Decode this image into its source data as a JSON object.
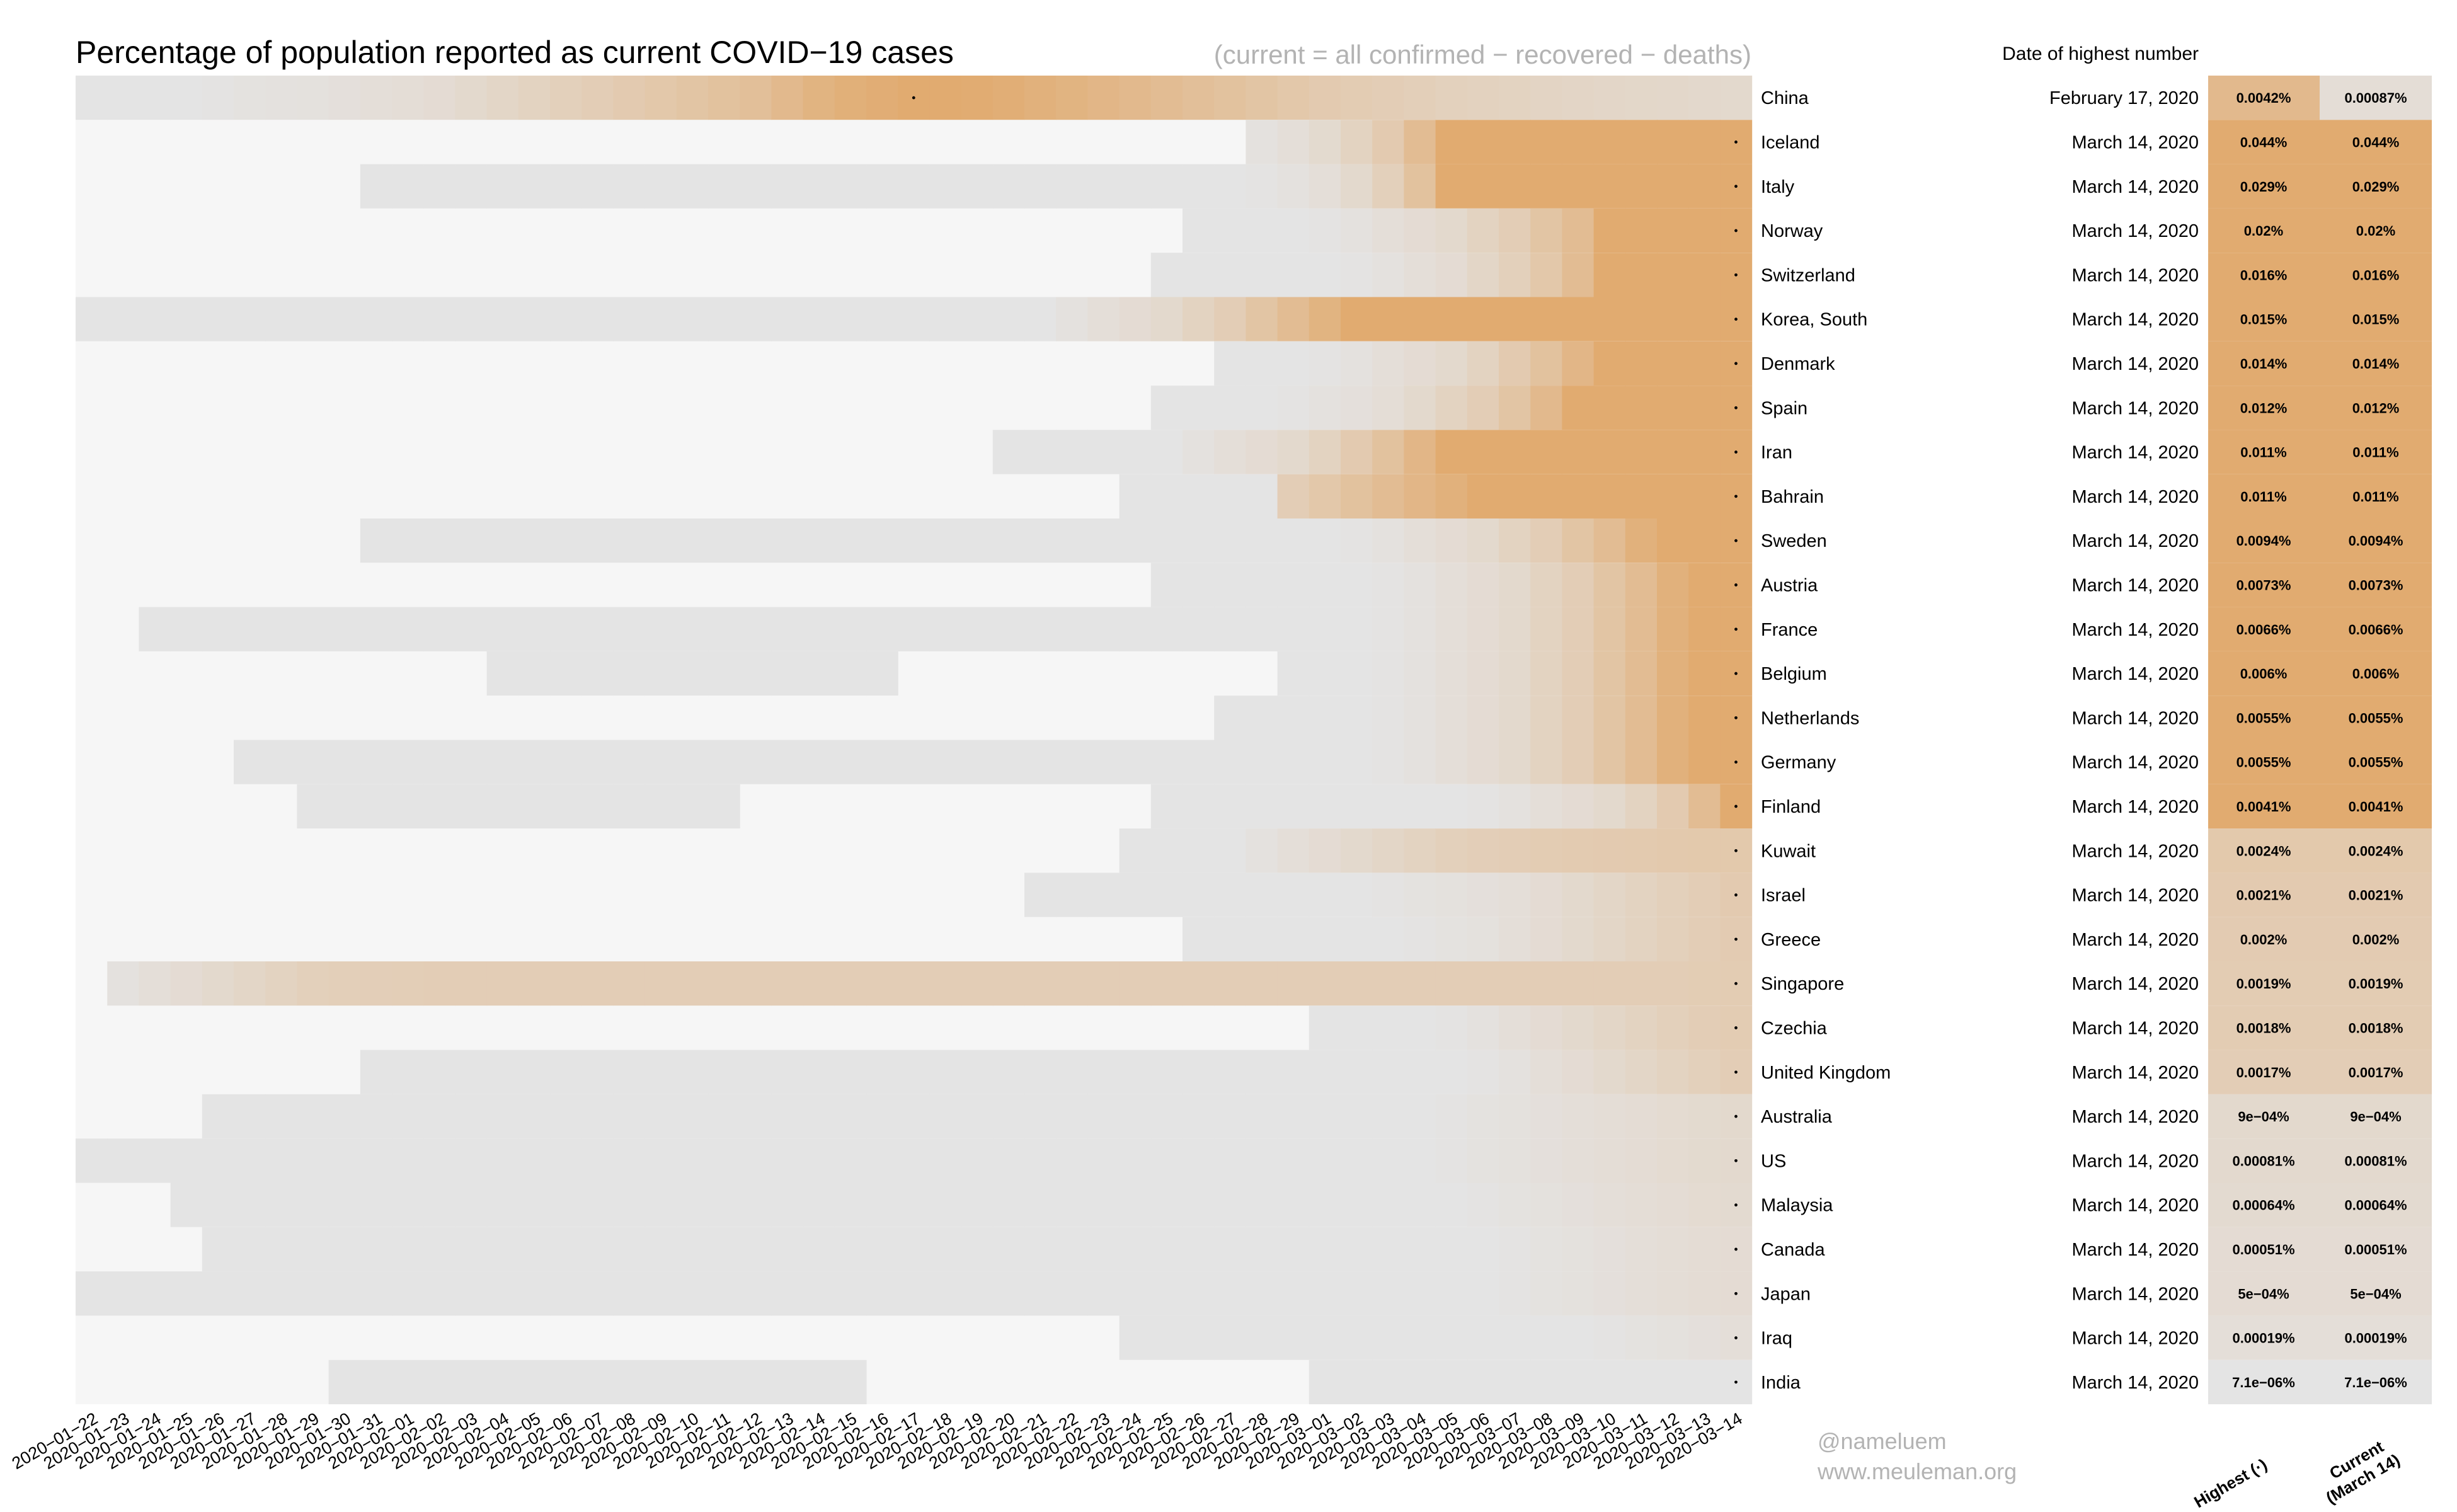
{
  "chart_data": {
    "type": "heatmap",
    "title": "Percentage of population reported as current COVID−19 cases",
    "subtitle": "(current = all confirmed − recovered − deaths)",
    "table_header": "Date of highest number",
    "col_labels": {
      "highest": "Highest (·)",
      "current_line1": "Current",
      "current_line2": "(March 14)"
    },
    "credit": {
      "handle": "@nameluem",
      "site": "www.meuleman.org"
    },
    "colors": {
      "background_zero": "#f6f6f6",
      "low": "#e4e4e4",
      "high": "#e1ab70"
    },
    "dates": [
      "2020−01−22",
      "2020−01−23",
      "2020−01−24",
      "2020−01−25",
      "2020−01−26",
      "2020−01−27",
      "2020−01−28",
      "2020−01−29",
      "2020−01−30",
      "2020−01−31",
      "2020−02−01",
      "2020−02−02",
      "2020−02−03",
      "2020−02−04",
      "2020−02−05",
      "2020−02−06",
      "2020−02−07",
      "2020−02−08",
      "2020−02−09",
      "2020−02−10",
      "2020−02−11",
      "2020−02−12",
      "2020−02−13",
      "2020−02−14",
      "2020−02−15",
      "2020−02−16",
      "2020−02−17",
      "2020−02−18",
      "2020−02−19",
      "2020−02−20",
      "2020−02−21",
      "2020−02−22",
      "2020−02−23",
      "2020−02−24",
      "2020−02−25",
      "2020−02−26",
      "2020−02−27",
      "2020−02−28",
      "2020−02−29",
      "2020−03−01",
      "2020−03−02",
      "2020−03−03",
      "2020−03−04",
      "2020−03−05",
      "2020−03−06",
      "2020−03−07",
      "2020−03−08",
      "2020−03−09",
      "2020−03−10",
      "2020−03−11",
      "2020−03−12",
      "2020−03−13",
      "2020−03−14"
    ],
    "countries": [
      {
        "name": "China",
        "peak_date": "February 17, 2020",
        "highest": "0.0042%",
        "current": "0.00087%",
        "first": 0,
        "peak_idx": 26,
        "ramp": [
          0,
          0,
          0,
          0,
          0.02,
          0.04,
          0.05,
          0.06,
          0.08,
          0.1,
          0.12,
          0.15,
          0.2,
          0.25,
          0.3,
          0.35,
          0.4,
          0.45,
          0.5,
          0.55,
          0.6,
          0.65,
          0.75,
          0.85,
          0.92,
          0.96,
          1,
          1,
          0.98,
          0.95,
          0.9,
          0.85,
          0.8,
          0.75,
          0.7,
          0.65,
          0.6,
          0.55,
          0.5,
          0.45,
          0.42,
          0.4,
          0.37,
          0.34,
          0.32,
          0.3,
          0.28,
          0.26,
          0.24,
          0.23,
          0.22,
          0.21,
          0.2
        ]
      },
      {
        "name": "Iceland",
        "peak_date": "March 14, 2020",
        "highest": "0.044%",
        "current": "0.044%",
        "first": 37,
        "peak_idx": 52,
        "ramp": [
          0.05,
          0.1,
          0.18,
          0.3,
          0.45,
          0.7,
          1,
          1,
          1,
          1,
          1,
          1,
          1,
          1,
          1,
          1
        ]
      },
      {
        "name": "Italy",
        "peak_date": "March 14, 2020",
        "highest": "0.029%",
        "current": "0.029%",
        "first": 9,
        "peak_idx": 52,
        "ramp": [
          0.02,
          0.05,
          0.1,
          0.2,
          0.35,
          0.6,
          1,
          1,
          1,
          1,
          1,
          1,
          1,
          1,
          1,
          1
        ]
      },
      {
        "name": "Norway",
        "peak_date": "March 14, 2020",
        "highest": "0.02%",
        "current": "0.02%",
        "first": 35,
        "peak_idx": 52,
        "ramp": [
          0.02,
          0.05,
          0.1,
          0.15,
          0.2,
          0.3,
          0.4,
          0.55,
          0.7,
          1,
          1,
          1,
          1,
          1
        ]
      },
      {
        "name": "Switzerland",
        "peak_date": "March 14, 2020",
        "highest": "0.016%",
        "current": "0.016%",
        "first": 34,
        "peak_idx": 52,
        "ramp": [
          0.02,
          0.05,
          0.1,
          0.15,
          0.25,
          0.35,
          0.5,
          0.7,
          1,
          1,
          1,
          1,
          1
        ]
      },
      {
        "name": "Korea, South",
        "peak_date": "March 14, 2020",
        "highest": "0.015%",
        "current": "0.015%",
        "first": 0,
        "peak_idx": 52,
        "ramp": [
          0.05,
          0.1,
          0.15,
          0.2,
          0.3,
          0.4,
          0.55,
          0.7,
          0.85,
          1,
          1,
          1,
          1,
          1,
          1,
          1,
          1,
          1,
          1,
          1,
          1,
          1
        ]
      },
      {
        "name": "Denmark",
        "peak_date": "March 14, 2020",
        "highest": "0.014%",
        "current": "0.014%",
        "first": 36,
        "peak_idx": 52,
        "ramp": [
          0.02,
          0.05,
          0.1,
          0.15,
          0.2,
          0.3,
          0.45,
          0.6,
          0.8,
          1,
          1,
          1,
          1,
          1
        ]
      },
      {
        "name": "Spain",
        "peak_date": "March 14, 2020",
        "highest": "0.012%",
        "current": "0.012%",
        "first": 34,
        "peak_idx": 52,
        "ramp": [
          0.02,
          0.05,
          0.08,
          0.12,
          0.2,
          0.3,
          0.4,
          0.55,
          0.75,
          1,
          1,
          1,
          1,
          1,
          1
        ]
      },
      {
        "name": "Iran",
        "peak_date": "March 14, 2020",
        "highest": "0.011%",
        "current": "0.011%",
        "first": 29,
        "peak_idx": 52,
        "ramp": [
          0.05,
          0.1,
          0.15,
          0.2,
          0.3,
          0.45,
          0.6,
          0.8,
          1,
          1,
          1,
          1,
          1,
          1,
          1,
          1,
          1,
          1
        ]
      },
      {
        "name": "Bahrain",
        "peak_date": "March 14, 2020",
        "highest": "0.011%",
        "current": "0.011%",
        "first": 33,
        "peak_idx": 52,
        "ramp": [
          0.4,
          0.5,
          0.6,
          0.7,
          0.8,
          0.9,
          1,
          1,
          1,
          1,
          1,
          1,
          1,
          1,
          1
        ]
      },
      {
        "name": "Sweden",
        "peak_date": "March 14, 2020",
        "highest": "0.0094%",
        "current": "0.0094%",
        "first": 9,
        "peak_idx": 52,
        "ramp": [
          0.02,
          0.05,
          0.1,
          0.15,
          0.2,
          0.3,
          0.4,
          0.55,
          0.7,
          0.9,
          1,
          1,
          1
        ]
      },
      {
        "name": "Austria",
        "peak_date": "March 14, 2020",
        "highest": "0.0073%",
        "current": "0.0073%",
        "first": 34,
        "peak_idx": 52,
        "ramp": [
          0.02,
          0.05,
          0.1,
          0.15,
          0.2,
          0.3,
          0.4,
          0.55,
          0.7,
          0.9,
          1,
          1
        ]
      },
      {
        "name": "France",
        "peak_date": "March 14, 2020",
        "highest": "0.0066%",
        "current": "0.0066%",
        "first": 2,
        "peak_idx": 52,
        "ramp": [
          0.02,
          0.05,
          0.1,
          0.15,
          0.2,
          0.3,
          0.4,
          0.55,
          0.7,
          0.9,
          1,
          1
        ]
      },
      {
        "name": "Belgium",
        "peak_date": "March 14, 2020",
        "highest": "0.006%",
        "current": "0.006%",
        "first": 13,
        "peak_idx": 52,
        "ramp": [
          0.02,
          0.05,
          0.1,
          0.15,
          0.2,
          0.3,
          0.4,
          0.55,
          0.7,
          0.9,
          1,
          1
        ]
      },
      {
        "name": "Netherlands",
        "peak_date": "March 14, 2020",
        "highest": "0.0055%",
        "current": "0.0055%",
        "first": 36,
        "peak_idx": 52,
        "ramp": [
          0.02,
          0.05,
          0.1,
          0.15,
          0.2,
          0.3,
          0.4,
          0.55,
          0.7,
          0.9,
          1,
          1
        ]
      },
      {
        "name": "Germany",
        "peak_date": "March 14, 2020",
        "highest": "0.0055%",
        "current": "0.0055%",
        "first": 5,
        "peak_idx": 52,
        "ramp": [
          0.02,
          0.05,
          0.1,
          0.15,
          0.2,
          0.3,
          0.4,
          0.55,
          0.7,
          0.9,
          1,
          1
        ]
      },
      {
        "name": "Finland",
        "peak_date": "March 14, 2020",
        "highest": "0.0041%",
        "current": "0.0041%",
        "first": 7,
        "peak_idx": 52,
        "ramp": [
          0.02,
          0.05,
          0.1,
          0.15,
          0.2,
          0.3,
          0.45,
          0.7,
          1
        ]
      },
      {
        "name": "Kuwait",
        "peak_date": "March 14, 2020",
        "highest": "0.0024%",
        "current": "0.0024%",
        "first": 33,
        "peak_idx": 52,
        "ramp": [
          0.05,
          0.1,
          0.15,
          0.2,
          0.25,
          0.3,
          0.35,
          0.38,
          0.4,
          0.42,
          0.44,
          0.45,
          0.46,
          0.47,
          0.48,
          0.48
        ]
      },
      {
        "name": "Israel",
        "peak_date": "March 14, 2020",
        "highest": "0.0021%",
        "current": "0.0021%",
        "first": 30,
        "peak_idx": 52,
        "ramp": [
          0.02,
          0.04,
          0.06,
          0.08,
          0.1,
          0.15,
          0.2,
          0.25,
          0.3,
          0.35,
          0.4,
          0.45
        ]
      },
      {
        "name": "Greece",
        "peak_date": "March 14, 2020",
        "highest": "0.002%",
        "current": "0.002%",
        "first": 35,
        "peak_idx": 52,
        "ramp": [
          0.02,
          0.04,
          0.06,
          0.1,
          0.15,
          0.2,
          0.25,
          0.3,
          0.35,
          0.4,
          0.43
        ]
      },
      {
        "name": "Singapore",
        "peak_date": "March 14, 2020",
        "highest": "0.0019%",
        "current": "0.0019%",
        "first": 1,
        "peak_idx": 52,
        "ramp": [
          0.05,
          0.1,
          0.15,
          0.2,
          0.25,
          0.3,
          0.35,
          0.37,
          0.38,
          0.39,
          0.4,
          0.4,
          0.4,
          0.4,
          0.4,
          0.4,
          0.4,
          0.4,
          0.4,
          0.4,
          0.4,
          0.4,
          0.4,
          0.4,
          0.4,
          0.4,
          0.4,
          0.4,
          0.4,
          0.4,
          0.4,
          0.4,
          0.4,
          0.4,
          0.4,
          0.4,
          0.4,
          0.4,
          0.4,
          0.4,
          0.4,
          0.4,
          0.4,
          0.4,
          0.4,
          0.4,
          0.4,
          0.4,
          0.4,
          0.4,
          0.41,
          0.42
        ]
      },
      {
        "name": "Czechia",
        "peak_date": "March 14, 2020",
        "highest": "0.0018%",
        "current": "0.0018%",
        "first": 39,
        "peak_idx": 52,
        "ramp": [
          0.02,
          0.05,
          0.1,
          0.15,
          0.2,
          0.25,
          0.3,
          0.35,
          0.4,
          0.42
        ]
      },
      {
        "name": "United Kingdom",
        "peak_date": "March 14, 2020",
        "highest": "0.0017%",
        "current": "0.0017%",
        "first": 9,
        "peak_idx": 52,
        "ramp": [
          0.02,
          0.05,
          0.1,
          0.15,
          0.2,
          0.25,
          0.3,
          0.35,
          0.4
        ]
      },
      {
        "name": "Australia",
        "peak_date": "March 14, 2020",
        "highest": "9e−04%",
        "current": "9e−04%",
        "first": 4,
        "peak_idx": 52,
        "ramp": [
          0.02,
          0.04,
          0.06,
          0.08,
          0.1,
          0.12,
          0.14,
          0.16,
          0.18,
          0.2
        ]
      },
      {
        "name": "US",
        "peak_date": "March 14, 2020",
        "highest": "0.00081%",
        "current": "0.00081%",
        "first": 0,
        "peak_idx": 52,
        "ramp": [
          0.02,
          0.04,
          0.06,
          0.08,
          0.1,
          0.12,
          0.14,
          0.16,
          0.18,
          0.19
        ]
      },
      {
        "name": "Malaysia",
        "peak_date": "March 14, 2020",
        "highest": "0.00064%",
        "current": "0.00064%",
        "first": 3,
        "peak_idx": 52,
        "ramp": [
          0.02,
          0.04,
          0.06,
          0.08,
          0.1,
          0.12,
          0.14,
          0.16,
          0.17
        ]
      },
      {
        "name": "Canada",
        "peak_date": "March 14, 2020",
        "highest": "0.00051%",
        "current": "0.00051%",
        "first": 4,
        "peak_idx": 52,
        "ramp": [
          0.02,
          0.04,
          0.06,
          0.08,
          0.1,
          0.12,
          0.14,
          0.15
        ]
      },
      {
        "name": "Japan",
        "peak_date": "March 14, 2020",
        "highest": "5e−04%",
        "current": "5e−04%",
        "first": 0,
        "peak_idx": 52,
        "ramp": [
          0.02,
          0.04,
          0.06,
          0.08,
          0.1,
          0.12,
          0.14,
          0.15
        ]
      },
      {
        "name": "Iraq",
        "peak_date": "March 14, 2020",
        "highest": "0.00019%",
        "current": "0.00019%",
        "first": 33,
        "peak_idx": 52,
        "ramp": [
          0.02,
          0.04,
          0.06,
          0.08,
          0.1
        ]
      },
      {
        "name": "India",
        "peak_date": "March 14, 2020",
        "highest": "7.1e−06%",
        "current": "7.1e−06%",
        "first": 8,
        "peak_idx": 52,
        "ramp": [
          0,
          0,
          0,
          0,
          0
        ]
      }
    ],
    "india_gap": [
      25,
      39
    ],
    "spain_gap": [
      14,
      33
    ],
    "belgium_gap": [
      26,
      38
    ],
    "finland_gap": [
      21,
      34
    ],
    "italy_gap": [
      null,
      null
    ]
  }
}
